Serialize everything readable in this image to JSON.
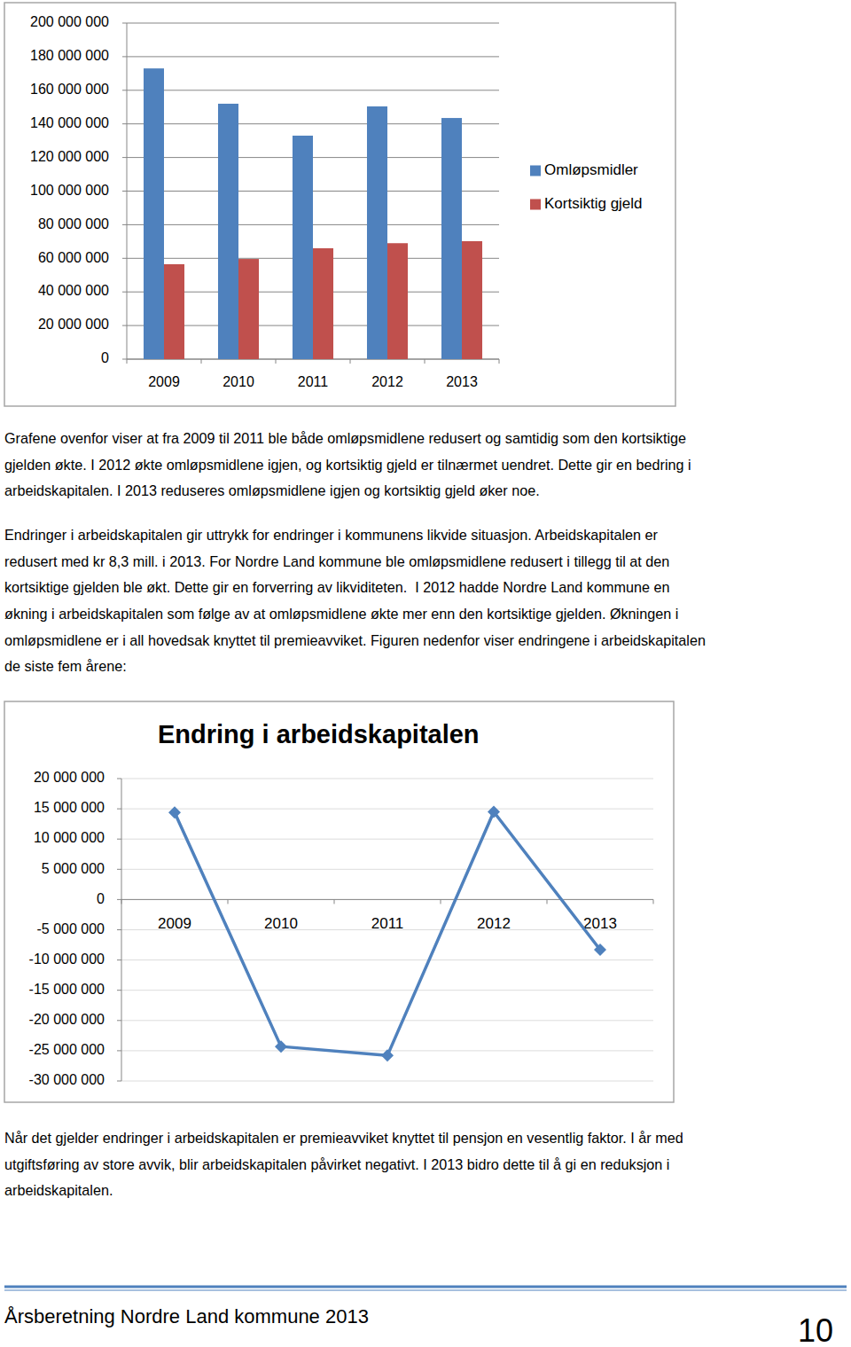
{
  "chart_data": [
    {
      "type": "bar",
      "categories": [
        "2009",
        "2010",
        "2011",
        "2012",
        "2013"
      ],
      "series": [
        {
          "name": "Omløpsmidler",
          "color": "#4f81bd",
          "values": [
            173000000,
            152000000,
            133000000,
            150400000,
            143500000
          ]
        },
        {
          "name": "Kortsiktig gjeld",
          "color": "#c0504d",
          "values": [
            56500000,
            59600000,
            66000000,
            69000000,
            70200000
          ]
        }
      ],
      "ylim": [
        0,
        200000000
      ],
      "yticks": [
        0,
        {
          "value": 20000000,
          "label": "20 000 000"
        },
        {
          "value": 40000000,
          "label": "40 000 000"
        },
        {
          "value": 60000000,
          "label": "60 000 000"
        },
        {
          "value": 80000000,
          "label": "80 000 000"
        },
        {
          "value": 100000000,
          "label": "100 000 000"
        },
        {
          "value": 120000000,
          "label": "120 000 000"
        },
        {
          "value": 140000000,
          "label": "140 000 000"
        },
        {
          "value": 160000000,
          "label": "160 000 000"
        },
        {
          "value": 180000000,
          "label": "180 000 000"
        },
        {
          "value": 200000000,
          "label": "200 000 000"
        }
      ],
      "grid": true,
      "legend": "right"
    },
    {
      "type": "line",
      "title": "Endring i arbeidskapitalen",
      "categories": [
        "2009",
        "2010",
        "2011",
        "2012",
        "2013"
      ],
      "series": [
        {
          "color": "#4f81bd",
          "marker": "diamond",
          "values": [
            14400000,
            -24300000,
            -25800000,
            14500000,
            -8300000
          ]
        }
      ],
      "ylim": [
        -30000000,
        20000000
      ],
      "yticks": [
        {
          "value": -30000000,
          "label": "-30 000 000"
        },
        {
          "value": -25000000,
          "label": "-25 000 000"
        },
        {
          "value": -20000000,
          "label": "-20 000 000"
        },
        {
          "value": -15000000,
          "label": "-15 000 000"
        },
        {
          "value": -10000000,
          "label": "-10 000 000"
        },
        {
          "value": -5000000,
          "label": "-5 000 000"
        },
        0,
        {
          "value": 5000000,
          "label": "5 000 000"
        },
        {
          "value": 10000000,
          "label": "10 000 000"
        },
        {
          "value": 15000000,
          "label": "15 000 000"
        },
        {
          "value": 20000000,
          "label": "20 000 000"
        }
      ],
      "grid": true
    }
  ],
  "document": {
    "paragraphs": [
      [
        "Grafene ovenfor viser at fra 2009 til 2011 ble både omløpsmidlene redusert og samtidig som den kortsiktige",
        "gjelden økte. I 2012 økte omløpsmidlene igjen, og kortsiktig gjeld er tilnærmet uendret. Dette gir en bedring i",
        "arbeidskapitalen. I 2013 reduseres omløpsmidlene igjen og kortsiktig gjeld øker noe."
      ],
      [
        "Endringer i arbeidskapitalen gir uttrykk for endringer i kommunens likvide situasjon. Arbeidskapitalen er",
        "redusert med kr 8,3 mill. i 2013. For Nordre Land kommune ble omløpsmidlene redusert i tillegg til at den",
        "kortsiktige gjelden ble økt. Dette gir en forverring av likviditeten.  I 2012 hadde Nordre Land kommune en",
        "økning i arbeidskapitalen som følge av at omløpsmidlene økte mer enn den kortsiktige gjelden. Økningen i",
        "omløpsmidlene er i all hovedsak knyttet til premieavviket. Figuren nedenfor viser endringene i arbeidskapitalen",
        "de siste fem årene:"
      ],
      [
        "Når det gjelder endringer i arbeidskapitalen er premieavviket knyttet til pensjon en vesentlig faktor. I år med",
        "utgiftsføring av store avvik, blir arbeidskapitalen påvirket negativt. I 2013 bidro dette til å gi en reduksjon i",
        "arbeidskapitalen."
      ]
    ],
    "footer": {
      "title": "Årsberetning Nordre Land kommune 2013",
      "page": "10"
    }
  }
}
